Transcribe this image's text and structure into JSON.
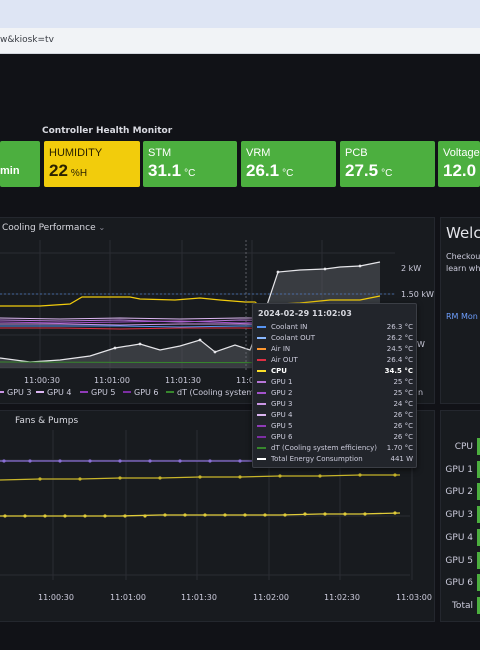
{
  "browser": {
    "address": "w&kiosk=tv"
  },
  "health": {
    "title": "Controller Health Monitor",
    "partial_unit": "min",
    "tiles": [
      {
        "label": "HUMIDITY",
        "value": "22",
        "unit": "%H",
        "color": "#f2cc0c"
      },
      {
        "label": "STM",
        "value": "31.1",
        "unit": "°C",
        "color": "#4caf3f"
      },
      {
        "label": "VRM",
        "value": "26.1",
        "unit": "°C",
        "color": "#4caf3f"
      },
      {
        "label": "PCB",
        "value": "27.5",
        "unit": "°C",
        "color": "#4caf3f"
      },
      {
        "label": "Voltage",
        "value": "12.0",
        "unit": "",
        "color": "#4caf3f"
      }
    ]
  },
  "cooling": {
    "title": "Cooling Performance",
    "right_axis": [
      "2 kW",
      "1.50 kW",
      "W"
    ],
    "x_ticks": [
      "11:00:30",
      "11:01:00",
      "11:01:30",
      "11:0"
    ],
    "legend": [
      "GPU 3",
      "GPU 4",
      "GPU 5",
      "GPU 6",
      "dT (Cooling system ef",
      "n"
    ]
  },
  "tooltip": {
    "time": "2024-02-29 11:02:03",
    "rows": [
      {
        "name": "Coolant IN",
        "value": "26.3 °C",
        "color": "#5794f2"
      },
      {
        "name": "Coolant OUT",
        "value": "26.2 °C",
        "color": "#8ab8ff"
      },
      {
        "name": "Air IN",
        "value": "24.5 °C",
        "color": "#ff9830"
      },
      {
        "name": "Air OUT",
        "value": "26.4 °C",
        "color": "#e02f44"
      },
      {
        "name": "CPU",
        "value": "34.5 °C",
        "color": "#fade2a",
        "bold": true
      },
      {
        "name": "GPU 1",
        "value": "25 °C",
        "color": "#b877d9"
      },
      {
        "name": "GPU 2",
        "value": "25 °C",
        "color": "#a352cc"
      },
      {
        "name": "GPU 3",
        "value": "24 °C",
        "color": "#ca95e5"
      },
      {
        "name": "GPU 4",
        "value": "26 °C",
        "color": "#dcb6f2"
      },
      {
        "name": "GPU 5",
        "value": "26 °C",
        "color": "#8f3bb8"
      },
      {
        "name": "GPU 6",
        "value": "26 °C",
        "color": "#7c2ea3"
      },
      {
        "name": "dT (Cooling system efficiency)",
        "value": "1.70 °C",
        "color": "#37872d"
      },
      {
        "name": "Total Energy Consumption",
        "value": "441 W",
        "color": "#ffffff"
      }
    ]
  },
  "welcome": {
    "title": "Welco",
    "line1": "Checkou",
    "line2": "learn wh",
    "link": "RM Mon"
  },
  "fans": {
    "title": "Fans & Pumps",
    "x_ticks": [
      "11:00:30",
      "11:01:00",
      "11:01:30",
      "11:02:00",
      "11:02:30",
      "11:03:00"
    ]
  },
  "bars": {
    "labels": [
      "CPU",
      "GPU 1",
      "GPU 2",
      "GPU 3",
      "GPU 4",
      "GPU 5",
      "GPU 6",
      "Total"
    ]
  }
}
